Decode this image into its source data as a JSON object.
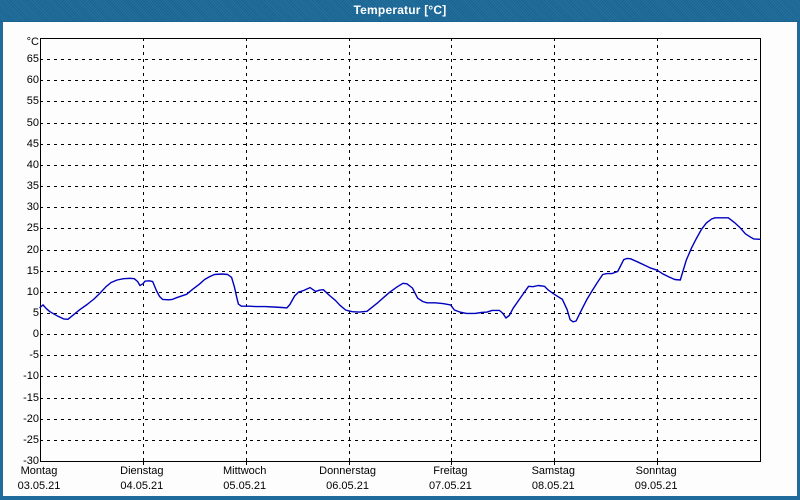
{
  "window": {
    "title": "Temperatur [°C]"
  },
  "colors": {
    "titlebar_bg": "#24719f",
    "titlebar_bg_dark": "#1a6391",
    "titlebar_text": "#ffffff",
    "window_border": "#1e6b9c",
    "window_background": "#fdfdfd",
    "plot_border": "#000000",
    "gridline": "#000000",
    "label_text": "#000000",
    "series_line": "#0000c0"
  },
  "chart_data": {
    "type": "line",
    "title": "Temperatur [°C]",
    "y_unit_label": "°C",
    "ylabel": "Temperatur",
    "ylim": [
      -30,
      70
    ],
    "ytick_step": 5,
    "ytick_labels": [
      "65",
      "60",
      "55",
      "50",
      "45",
      "40",
      "35",
      "30",
      "25",
      "20",
      "15",
      "10",
      "5",
      "0",
      "-5",
      "-10",
      "-15",
      "-20",
      "-25",
      "-30"
    ],
    "grid": "dashed-black",
    "legend": "none",
    "x_hours_total": 168,
    "x_days": [
      {
        "name": "Montag",
        "date": "03.05.21"
      },
      {
        "name": "Dienstag",
        "date": "04.05.21"
      },
      {
        "name": "Mittwoch",
        "date": "05.05.21"
      },
      {
        "name": "Donnerstag",
        "date": "06.05.21"
      },
      {
        "name": "Freitag",
        "date": "07.05.21"
      },
      {
        "name": "Samstag",
        "date": "08.05.21"
      },
      {
        "name": "Sonntag",
        "date": "09.05.21"
      }
    ],
    "series": [
      {
        "name": "Temperatur",
        "unit": "°C",
        "color": "#0000c0",
        "points_hours_temp": [
          [
            0,
            6.3
          ],
          [
            0.7,
            6.9
          ],
          [
            1.5,
            6.0
          ],
          [
            2.3,
            5.3
          ],
          [
            4.2,
            4.2
          ],
          [
            5.5,
            3.6
          ],
          [
            6.5,
            3.5
          ],
          [
            7.5,
            4.3
          ],
          [
            9.3,
            5.8
          ],
          [
            11,
            7.0
          ],
          [
            12.6,
            8.3
          ],
          [
            14,
            9.7
          ],
          [
            15.4,
            11.2
          ],
          [
            16.6,
            12.2
          ],
          [
            18,
            12.8
          ],
          [
            19.5,
            13.1
          ],
          [
            21,
            13.2
          ],
          [
            22,
            13.1
          ],
          [
            22.8,
            12.4
          ],
          [
            23.3,
            11.5
          ],
          [
            24,
            11.9
          ],
          [
            24.5,
            12.5
          ],
          [
            25.5,
            12.6
          ],
          [
            26.3,
            12.4
          ],
          [
            27.2,
            10.2
          ],
          [
            27.9,
            8.9
          ],
          [
            28.6,
            8.2
          ],
          [
            30,
            8.1
          ],
          [
            30.9,
            8.2
          ],
          [
            32.1,
            8.7
          ],
          [
            34.2,
            9.4
          ],
          [
            35.6,
            10.6
          ],
          [
            37.2,
            11.8
          ],
          [
            38.4,
            12.9
          ],
          [
            39.6,
            13.6
          ],
          [
            40.7,
            14.1
          ],
          [
            42.5,
            14.2
          ],
          [
            43.8,
            14.1
          ],
          [
            44.7,
            13.4
          ],
          [
            45.4,
            11.0
          ],
          [
            45.9,
            8.7
          ],
          [
            46.3,
            7.1
          ],
          [
            47,
            6.6
          ],
          [
            48,
            6.6
          ],
          [
            48.9,
            6.6
          ],
          [
            50.5,
            6.5
          ],
          [
            52.5,
            6.5
          ],
          [
            54.5,
            6.4
          ],
          [
            56.5,
            6.3
          ],
          [
            57.6,
            6.2
          ],
          [
            58.3,
            7.0
          ],
          [
            59.4,
            9.0
          ],
          [
            60.3,
            9.9
          ],
          [
            61.5,
            10.3
          ],
          [
            63,
            11.0
          ],
          [
            64.3,
            10.1
          ],
          [
            65.3,
            10.4
          ],
          [
            66.1,
            10.5
          ],
          [
            67.6,
            9.1
          ],
          [
            68.9,
            8.0
          ],
          [
            70,
            6.8
          ],
          [
            71.3,
            5.7
          ],
          [
            72,
            5.5
          ],
          [
            72.9,
            5.3
          ],
          [
            74.5,
            5.2
          ],
          [
            76.3,
            5.4
          ],
          [
            78.9,
            7.5
          ],
          [
            81.6,
            9.9
          ],
          [
            83.4,
            11.2
          ],
          [
            84.7,
            12.0
          ],
          [
            85.6,
            11.9
          ],
          [
            86.9,
            10.9
          ],
          [
            88.1,
            8.5
          ],
          [
            89.3,
            7.7
          ],
          [
            90.3,
            7.4
          ],
          [
            92.2,
            7.4
          ],
          [
            94,
            7.2
          ],
          [
            95.8,
            6.9
          ],
          [
            96.7,
            5.7
          ],
          [
            98,
            5.2
          ],
          [
            99.5,
            4.9
          ],
          [
            101.5,
            4.9
          ],
          [
            103,
            5.1
          ],
          [
            104.3,
            5.2
          ],
          [
            105.5,
            5.6
          ],
          [
            107.2,
            5.6
          ],
          [
            108,
            4.9
          ],
          [
            108.7,
            3.8
          ],
          [
            109.5,
            4.4
          ],
          [
            110.4,
            6.1
          ],
          [
            112.4,
            9.0
          ],
          [
            114,
            11.3
          ],
          [
            115,
            11.2
          ],
          [
            116.3,
            11.5
          ],
          [
            117.7,
            11.3
          ],
          [
            118.6,
            10.4
          ],
          [
            120,
            9.4
          ],
          [
            121.9,
            8.2
          ],
          [
            123,
            5.8
          ],
          [
            123.7,
            3.4
          ],
          [
            124.4,
            2.9
          ],
          [
            125.1,
            3.1
          ],
          [
            126.4,
            5.8
          ],
          [
            127.6,
            8.2
          ],
          [
            128.8,
            10.2
          ],
          [
            130,
            12.1
          ],
          [
            131.3,
            14.1
          ],
          [
            132.3,
            14.3
          ],
          [
            133.4,
            14.3
          ],
          [
            134.8,
            14.8
          ],
          [
            136.2,
            17.6
          ],
          [
            137,
            17.9
          ],
          [
            137.8,
            17.8
          ],
          [
            139.4,
            17.1
          ],
          [
            141.1,
            16.3
          ],
          [
            142.5,
            15.6
          ],
          [
            144,
            15.1
          ],
          [
            145.2,
            14.3
          ],
          [
            146.8,
            13.5
          ],
          [
            148.1,
            12.9
          ],
          [
            149.4,
            12.8
          ],
          [
            150.8,
            17.5
          ],
          [
            152,
            20.3
          ],
          [
            153.2,
            22.7
          ],
          [
            154.3,
            24.7
          ],
          [
            155.5,
            26.3
          ],
          [
            156.7,
            27.2
          ],
          [
            157.5,
            27.5
          ],
          [
            160.6,
            27.5
          ],
          [
            162,
            26.4
          ],
          [
            163.4,
            25.1
          ],
          [
            164.6,
            23.7
          ],
          [
            165.8,
            22.9
          ],
          [
            166.5,
            22.5
          ],
          [
            168,
            22.4
          ]
        ]
      }
    ]
  }
}
